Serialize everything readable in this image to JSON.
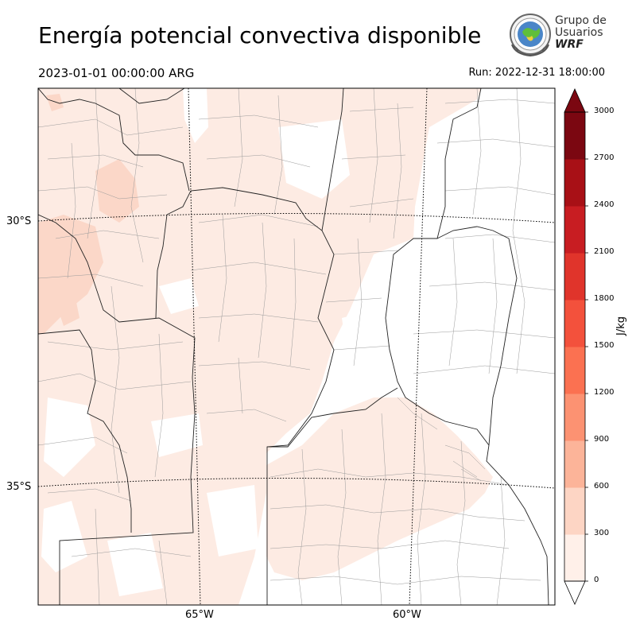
{
  "header": {
    "title": "Energía potencial convectiva disponible",
    "valid_time": "2023-01-01 00:00:00 ARG",
    "run": "Run: 2022-12-31 18:00:00"
  },
  "logo": {
    "line1": "Grupo de",
    "line2": "Usuarios",
    "line3": "WRF",
    "icon": "globe-emblem-icon"
  },
  "map": {
    "lat_labels": [
      "30°S",
      "35°S"
    ],
    "lon_labels": [
      "65°W",
      "60°W"
    ]
  },
  "colorbar": {
    "unit": "J/kg",
    "ticks": [
      "0",
      "300",
      "600",
      "900",
      "1200",
      "1500",
      "1800",
      "2100",
      "2400",
      "2700",
      "3000"
    ],
    "colors": [
      "#fff0e9",
      "#fdd5c4",
      "#fcb499",
      "#fc9272",
      "#fb7151",
      "#f3513c",
      "#e0342b",
      "#c81d22",
      "#a81016",
      "#7b0711"
    ]
  },
  "chart_data": {
    "type": "heatmap",
    "variable": "CAPE",
    "unit": "J/kg",
    "levels": [
      0,
      300,
      600,
      900,
      1200,
      1500,
      1800,
      2100,
      2400,
      2700,
      3000
    ],
    "extend": "both",
    "field_summary": "Most shaded areas fall in the 0–300 J/kg class, with small patches of 300–600 J/kg in the northwest."
  }
}
